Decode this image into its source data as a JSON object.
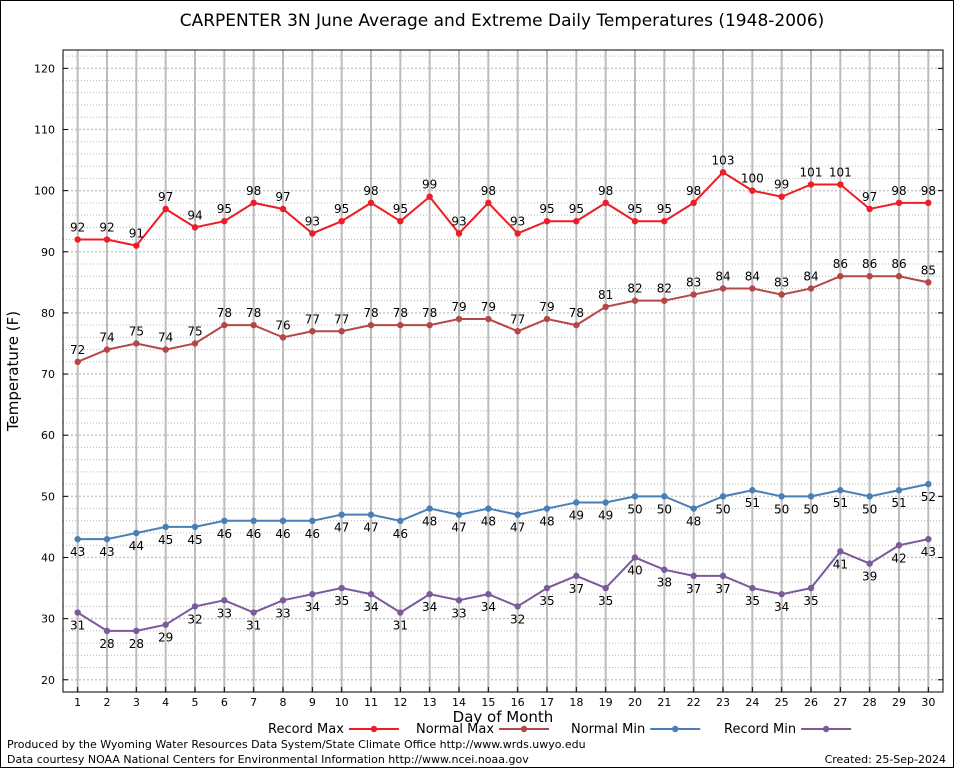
{
  "chart_data": {
    "type": "line",
    "title": "CARPENTER 3N June Average and Extreme Daily Temperatures (1948-2006)",
    "xlabel": "Day of Month",
    "ylabel": "Temperature (F)",
    "x": [
      1,
      2,
      3,
      4,
      5,
      6,
      7,
      8,
      9,
      10,
      11,
      12,
      13,
      14,
      15,
      16,
      17,
      18,
      19,
      20,
      21,
      22,
      23,
      24,
      25,
      26,
      27,
      28,
      29,
      30
    ],
    "xlim": [
      0.5,
      30.5
    ],
    "ylim": [
      18,
      123
    ],
    "yticks": [
      20,
      30,
      40,
      50,
      60,
      70,
      80,
      90,
      100,
      110,
      120
    ],
    "grid": true,
    "legend_position": "bottom",
    "series": [
      {
        "name": "Record Max",
        "color": "#ee1c24",
        "label_pos": "above",
        "values": [
          92,
          92,
          91,
          97,
          94,
          95,
          98,
          97,
          93,
          95,
          98,
          95,
          99,
          93,
          98,
          93,
          95,
          95,
          98,
          95,
          95,
          98,
          103,
          100,
          99,
          101,
          101,
          97,
          98,
          98
        ]
      },
      {
        "name": "Normal Max",
        "color": "#b44848",
        "label_pos": "above",
        "values": [
          72,
          74,
          75,
          74,
          75,
          78,
          78,
          76,
          77,
          77,
          78,
          78,
          78,
          79,
          79,
          77,
          79,
          78,
          81,
          82,
          82,
          83,
          84,
          84,
          83,
          84,
          86,
          86,
          86,
          85
        ]
      },
      {
        "name": "Normal Min",
        "color": "#4a7fb5",
        "label_pos": "below",
        "values": [
          43,
          43,
          44,
          45,
          45,
          46,
          46,
          46,
          46,
          47,
          47,
          46,
          48,
          47,
          48,
          47,
          48,
          49,
          49,
          50,
          50,
          48,
          50,
          51,
          50,
          50,
          51,
          50,
          51,
          52
        ]
      },
      {
        "name": "Record Min",
        "color": "#7b5a9a",
        "label_pos": "below",
        "values": [
          31,
          28,
          28,
          29,
          32,
          33,
          31,
          33,
          34,
          35,
          34,
          31,
          34,
          33,
          34,
          32,
          35,
          37,
          35,
          40,
          38,
          37,
          37,
          35,
          34,
          35,
          41,
          39,
          42,
          43
        ]
      }
    ]
  },
  "footer": {
    "line1": "Produced by the Wyoming Water Resources Data System/State Climate Office http://www.wrds.uwyo.edu",
    "line2": "Data courtesy NOAA National Centers for Environmental Information http://www.ncei.noaa.gov",
    "created": "Created:  25-Sep-2024"
  }
}
